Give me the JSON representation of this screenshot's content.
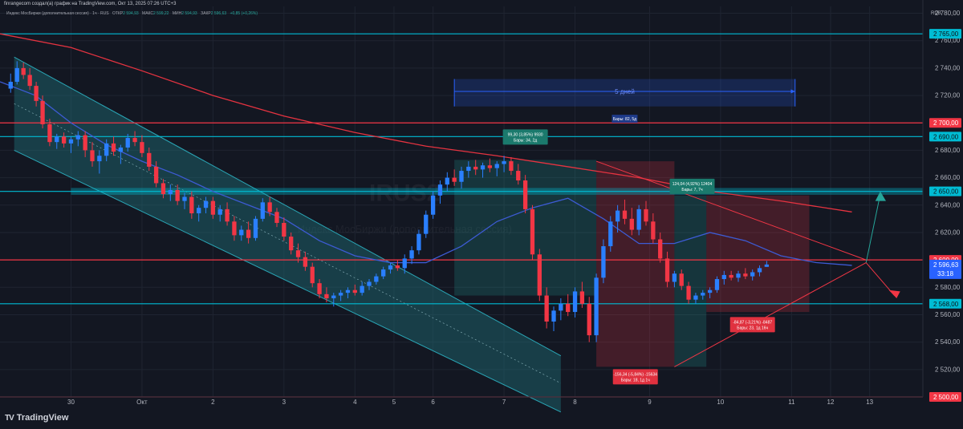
{
  "header": {
    "attribution": "finrangecom создал(а) график на TradingView.com, Окт 13, 2025 07:26 UTC+3",
    "legend": {
      "name": "Индекс МосБиржи (дополнительная сессия) · 1ч · RUS",
      "open_label": "ОТКР",
      "open_value": "2 594,93",
      "high_label": "МАКС",
      "high_value": "2 599,22",
      "low_label": "МИН",
      "low_value": "2 594,93",
      "close_label": "ЗАКР",
      "close_value": "2 596,63",
      "change": "+0,85 (+0,26%)"
    },
    "currency": "RUB"
  },
  "watermark": {
    "symbol": "IRUS2",
    "name": "Индекс МосБиржи (дополнительная сессия)"
  },
  "brand": {
    "icon": "TV",
    "name": "TradingView"
  },
  "colors": {
    "background": "#131722",
    "bull": "#2a7fff",
    "bear": "#f23645",
    "cyan_level": "#00bcd4",
    "red_level": "#f23645",
    "channel_fill": "#1e6f78",
    "ma_fast": "#3d5bd4",
    "ma_slow": "#e53340"
  },
  "chart_data": {
    "type": "candlestick",
    "interval": "1h",
    "ylim": [
      2500,
      2785
    ],
    "yticks": [
      2500,
      2520,
      2540,
      2560,
      2580,
      2600,
      2620,
      2640,
      2660,
      2680,
      2700,
      2720,
      2740,
      2760,
      2780
    ],
    "ytick_labels": [
      "2 500,00",
      "2 520,00",
      "2 540,00",
      "2 560,00",
      "2 580,00",
      "2 600,00",
      "2 620,00",
      "2 640,00",
      "2 660,00",
      "2 680,00",
      "2 700,00",
      "2 720,00",
      "2 740,00",
      "2 760,00",
      "2 780,00"
    ],
    "x_range": [
      0,
      130
    ],
    "xticks": [
      {
        "label": "30",
        "x": 10
      },
      {
        "label": "Окт",
        "x": 20
      },
      {
        "label": "2",
        "x": 30
      },
      {
        "label": "3",
        "x": 40
      },
      {
        "label": "4",
        "x": 50
      },
      {
        "label": "5",
        "x": 55.5
      },
      {
        "label": "6",
        "x": 61
      },
      {
        "label": "7",
        "x": 71
      },
      {
        "label": "8",
        "x": 81
      },
      {
        "label": "9",
        "x": 91.5
      },
      {
        "label": "10",
        "x": 101.5
      },
      {
        "label": "11",
        "x": 111.5
      },
      {
        "label": "12",
        "x": 117
      },
      {
        "label": "13",
        "x": 122.5
      }
    ],
    "candles": [
      [
        2725,
        2736,
        2722,
        2730
      ],
      [
        2730,
        2745,
        2728,
        2740
      ],
      [
        2740,
        2744,
        2732,
        2735
      ],
      [
        2735,
        2740,
        2724,
        2727
      ],
      [
        2727,
        2730,
        2712,
        2716
      ],
      [
        2716,
        2720,
        2696,
        2699
      ],
      [
        2699,
        2703,
        2683,
        2686
      ],
      [
        2686,
        2692,
        2681,
        2690
      ],
      [
        2690,
        2693,
        2682,
        2685
      ],
      [
        2685,
        2690,
        2678,
        2688
      ],
      [
        2688,
        2694,
        2683,
        2691
      ],
      [
        2691,
        2694,
        2675,
        2680
      ],
      [
        2680,
        2686,
        2668,
        2672
      ],
      [
        2672,
        2680,
        2663,
        2676
      ],
      [
        2676,
        2688,
        2672,
        2685
      ],
      [
        2685,
        2690,
        2676,
        2679
      ],
      [
        2679,
        2684,
        2670,
        2682
      ],
      [
        2682,
        2692,
        2679,
        2689
      ],
      [
        2689,
        2694,
        2683,
        2686
      ],
      [
        2686,
        2691,
        2675,
        2678
      ],
      [
        2678,
        2682,
        2665,
        2668
      ],
      [
        2668,
        2672,
        2653,
        2656
      ],
      [
        2656,
        2659,
        2645,
        2648
      ],
      [
        2648,
        2655,
        2643,
        2651
      ],
      [
        2651,
        2655,
        2640,
        2643
      ],
      [
        2643,
        2649,
        2637,
        2646
      ],
      [
        2646,
        2650,
        2630,
        2634
      ],
      [
        2634,
        2640,
        2628,
        2638
      ],
      [
        2638,
        2646,
        2634,
        2643
      ],
      [
        2643,
        2646,
        2630,
        2633
      ],
      [
        2633,
        2640,
        2628,
        2637
      ],
      [
        2637,
        2642,
        2625,
        2628
      ],
      [
        2628,
        2632,
        2614,
        2618
      ],
      [
        2618,
        2625,
        2614,
        2622
      ],
      [
        2622,
        2628,
        2612,
        2616
      ],
      [
        2616,
        2632,
        2614,
        2630
      ],
      [
        2630,
        2645,
        2628,
        2642
      ],
      [
        2642,
        2646,
        2632,
        2635
      ],
      [
        2635,
        2638,
        2624,
        2627
      ],
      [
        2627,
        2631,
        2614,
        2617
      ],
      [
        2617,
        2620,
        2604,
        2607
      ],
      [
        2607,
        2612,
        2598,
        2602
      ],
      [
        2602,
        2606,
        2592,
        2595
      ],
      [
        2595,
        2598,
        2580,
        2583
      ],
      [
        2583,
        2586,
        2572,
        2575
      ],
      [
        2575,
        2580,
        2569,
        2572
      ],
      [
        2572,
        2576,
        2566,
        2574
      ],
      [
        2574,
        2578,
        2570,
        2576
      ],
      [
        2576,
        2580,
        2572,
        2578
      ],
      [
        2578,
        2582,
        2574,
        2576
      ],
      [
        2576,
        2584,
        2574,
        2581
      ],
      [
        2581,
        2586,
        2578,
        2584
      ],
      [
        2584,
        2590,
        2582,
        2588
      ],
      [
        2588,
        2595,
        2586,
        2593
      ],
      [
        2593,
        2598,
        2590,
        2596
      ],
      [
        2596,
        2600,
        2592,
        2594
      ],
      [
        2594,
        2604,
        2590,
        2601
      ],
      [
        2601,
        2610,
        2597,
        2607
      ],
      [
        2607,
        2622,
        2604,
        2619
      ],
      [
        2619,
        2636,
        2616,
        2633
      ],
      [
        2633,
        2650,
        2630,
        2647
      ],
      [
        2647,
        2658,
        2641,
        2655
      ],
      [
        2655,
        2664,
        2650,
        2660
      ],
      [
        2660,
        2666,
        2654,
        2657
      ],
      [
        2657,
        2668,
        2652,
        2665
      ],
      [
        2665,
        2672,
        2660,
        2668
      ],
      [
        2668,
        2673,
        2662,
        2666
      ],
      [
        2666,
        2671,
        2660,
        2669
      ],
      [
        2669,
        2674,
        2664,
        2667
      ],
      [
        2667,
        2672,
        2661,
        2670
      ],
      [
        2670,
        2676,
        2664,
        2672
      ],
      [
        2672,
        2675,
        2662,
        2665
      ],
      [
        2665,
        2670,
        2655,
        2658
      ],
      [
        2658,
        2662,
        2634,
        2637
      ],
      [
        2637,
        2640,
        2600,
        2604
      ],
      [
        2604,
        2608,
        2570,
        2574
      ],
      [
        2574,
        2580,
        2550,
        2555
      ],
      [
        2555,
        2566,
        2548,
        2563
      ],
      [
        2563,
        2572,
        2556,
        2568
      ],
      [
        2568,
        2575,
        2559,
        2562
      ],
      [
        2562,
        2580,
        2558,
        2577
      ],
      [
        2577,
        2584,
        2565,
        2568
      ],
      [
        2568,
        2573,
        2540,
        2545
      ],
      [
        2545,
        2590,
        2540,
        2587
      ],
      [
        2587,
        2615,
        2583,
        2610
      ],
      [
        2610,
        2632,
        2606,
        2628
      ],
      [
        2628,
        2640,
        2620,
        2636
      ],
      [
        2636,
        2644,
        2626,
        2630
      ],
      [
        2630,
        2638,
        2618,
        2622
      ],
      [
        2622,
        2640,
        2618,
        2637
      ],
      [
        2637,
        2643,
        2625,
        2628
      ],
      [
        2628,
        2634,
        2612,
        2615
      ],
      [
        2615,
        2620,
        2598,
        2601
      ],
      [
        2601,
        2606,
        2580,
        2584
      ],
      [
        2584,
        2592,
        2580,
        2590
      ],
      [
        2590,
        2593,
        2578,
        2581
      ],
      [
        2581,
        2584,
        2568,
        2571
      ],
      [
        2571,
        2576,
        2568,
        2574
      ],
      [
        2574,
        2578,
        2571,
        2576
      ],
      [
        2576,
        2580,
        2572,
        2578
      ],
      [
        2578,
        2588,
        2576,
        2586
      ],
      [
        2586,
        2592,
        2582,
        2589
      ],
      [
        2589,
        2592,
        2585,
        2587
      ],
      [
        2587,
        2592,
        2584,
        2590
      ],
      [
        2590,
        2594,
        2586,
        2588
      ],
      [
        2588,
        2593,
        2585,
        2591
      ],
      [
        2591,
        2596,
        2588,
        2594
      ],
      [
        2594.93,
        2599.22,
        2594.93,
        2596.63
      ]
    ],
    "candle_x": [
      1.5,
      2.4,
      3.3,
      4.2,
      5.1,
      6,
      7,
      8,
      9,
      10,
      11,
      12,
      13,
      14,
      15,
      16,
      17,
      18,
      19,
      20,
      21,
      22,
      23,
      24,
      25,
      26,
      27,
      28,
      29,
      30,
      31,
      32,
      33,
      34,
      35,
      36,
      37,
      38,
      39,
      40,
      41,
      42,
      43,
      44,
      45,
      46,
      47,
      48,
      49,
      50,
      51,
      52,
      53,
      54,
      55,
      56,
      57,
      58,
      59,
      60,
      61,
      62,
      63,
      64,
      65,
      66,
      67,
      68,
      69,
      70,
      71,
      72,
      73,
      74,
      75,
      76,
      77,
      78,
      79,
      80,
      81,
      82,
      83,
      84,
      85,
      86,
      87,
      88,
      89,
      90,
      91,
      92,
      93,
      94,
      95,
      96,
      97,
      98,
      99,
      100,
      101,
      102,
      103,
      104,
      105,
      106,
      107,
      108
    ],
    "candle_x_note_map": "display",
    "ma_fast": [
      [
        0,
        2730
      ],
      [
        5,
        2720
      ],
      [
        10,
        2700
      ],
      [
        15,
        2684
      ],
      [
        20,
        2672
      ],
      [
        25,
        2662
      ],
      [
        30,
        2650
      ],
      [
        35,
        2640
      ],
      [
        40,
        2630
      ],
      [
        45,
        2614
      ],
      [
        50,
        2603
      ],
      [
        55,
        2598
      ],
      [
        60,
        2598
      ],
      [
        65,
        2610
      ],
      [
        70,
        2628
      ],
      [
        75,
        2638
      ],
      [
        80,
        2645
      ],
      [
        85,
        2630
      ],
      [
        90,
        2612
      ],
      [
        95,
        2612
      ],
      [
        100,
        2620
      ],
      [
        105,
        2614
      ],
      [
        110,
        2603
      ],
      [
        115,
        2598
      ],
      [
        120,
        2596
      ]
    ],
    "ma_slow": [
      [
        0,
        2765
      ],
      [
        10,
        2755
      ],
      [
        20,
        2738
      ],
      [
        30,
        2720
      ],
      [
        40,
        2705
      ],
      [
        50,
        2693
      ],
      [
        60,
        2683
      ],
      [
        70,
        2676
      ],
      [
        80,
        2668
      ],
      [
        90,
        2660
      ],
      [
        100,
        2650
      ],
      [
        110,
        2643
      ],
      [
        120,
        2635
      ]
    ],
    "horizontal_levels": [
      {
        "value": 2765,
        "label": "2 765,00",
        "color": "cyan"
      },
      {
        "value": 2700,
        "label": "2 700,00",
        "color": "red"
      },
      {
        "value": 2690,
        "label": "2 690,00",
        "color": "cyan"
      },
      {
        "value": 2650,
        "label": "2 650,00",
        "color": "cyan"
      },
      {
        "value": 2600,
        "label": "2 600,00",
        "color": "red"
      },
      {
        "value": 2568,
        "label": "2 568,00",
        "color": "cyan"
      },
      {
        "value": 2500,
        "label": "2 500,00",
        "color": "red"
      }
    ],
    "price_label": {
      "value": 2596.63,
      "label": "2 596,63",
      "countdown": "33:18"
    },
    "date_range": {
      "x1": 64,
      "x2": 112,
      "y": 2723,
      "label": "5 дней"
    },
    "bars_label": {
      "x": 88,
      "y": 2703,
      "label": "Бары: 82, 5д"
    },
    "measurements": [
      {
        "x1": 64,
        "x2": 84,
        "from": 2574,
        "to": 2673,
        "direction": "up",
        "label1": "99,30 (3,85%) 9930",
        "label2": "Бары: 34, 2д",
        "label_x": 74,
        "label_y": 2690
      },
      {
        "x1": 84,
        "x2": 95,
        "from": 2672,
        "to": 2522,
        "direction": "down",
        "label1": "-156,34 (-5,84%) -15634",
        "label2": "Бары: 18, 1д 1ч",
        "label_x": 89.5,
        "label_y": 2515
      },
      {
        "x1": 95,
        "x2": 99.5,
        "from": 2522,
        "to": 2647,
        "direction": "up",
        "label1": "124,04 (4,92%) 12404",
        "label2": "Бары: 7, 7ч",
        "label_x": 97.5,
        "label_y": 2654
      },
      {
        "x1": 99.5,
        "x2": 114,
        "from": 2647,
        "to": 2562,
        "direction": "down",
        "label1": "-84,87 (-3,21%) -8487",
        "label2": "Бары: 23, 1д 16ч",
        "label_x": 106,
        "label_y": 2553
      }
    ]
  }
}
